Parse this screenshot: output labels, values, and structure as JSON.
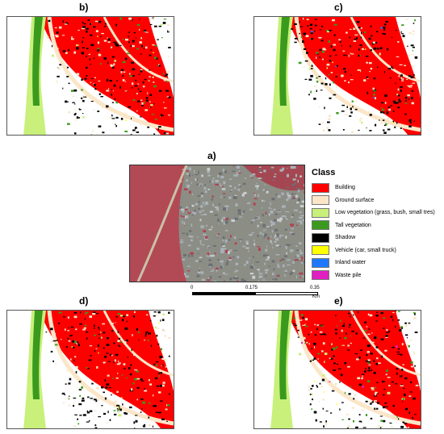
{
  "panels": {
    "a": {
      "label": "a)"
    },
    "b": {
      "label": "b)"
    },
    "c": {
      "label": "c)"
    },
    "d": {
      "label": "d)"
    },
    "e": {
      "label": "e)"
    }
  },
  "legend": {
    "title": "Class",
    "items": [
      {
        "label": "Building",
        "color": "#ff0000"
      },
      {
        "label": "Ground surface",
        "color": "#fbe6c8"
      },
      {
        "label": "Low vegetation (grass, bush, small tres)",
        "color": "#c8f07a"
      },
      {
        "label": "Tall vegetation",
        "color": "#3a9a1e"
      },
      {
        "label": "Shadow",
        "color": "#000000"
      },
      {
        "label": "Vehicle (car, small truck)",
        "color": "#ffff00"
      },
      {
        "label": "Inland water",
        "color": "#1e78ff"
      },
      {
        "label": "Waste pile",
        "color": "#e020c0"
      }
    ]
  },
  "scale_bar": {
    "ticks": [
      "0",
      "0.175",
      "0.35"
    ],
    "unit": "Km"
  }
}
